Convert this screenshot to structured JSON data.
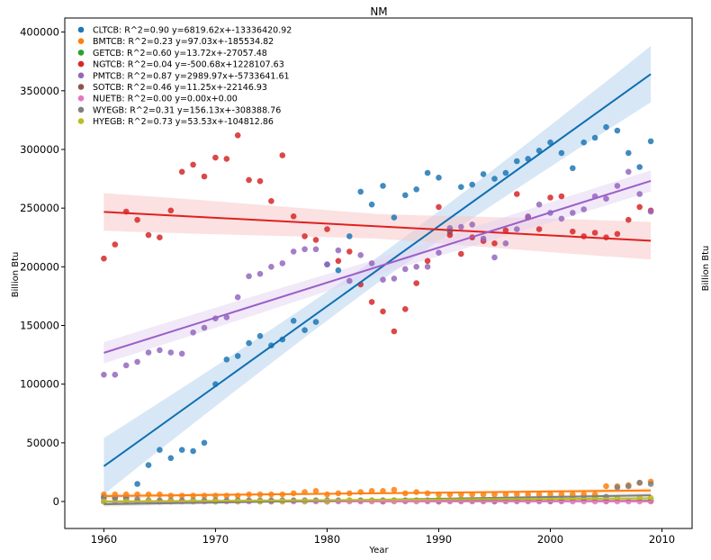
{
  "chart_data": {
    "type": "scatter",
    "title": "NM",
    "xlabel": "Year",
    "ylabel": "Billion Btu",
    "ylabel_right": "Billion Btu",
    "xlim": [
      1956.5,
      2012.7
    ],
    "ylim": [
      -23000,
      412000
    ],
    "x_ticks": [
      1960,
      1970,
      1980,
      1990,
      2000,
      2010
    ],
    "y_ticks": [
      0,
      50000,
      100000,
      150000,
      200000,
      250000,
      300000,
      350000,
      400000
    ],
    "grid": false,
    "legend_position": "top-left",
    "series": [
      {
        "name": "CLTCB",
        "legend": "CLTCB: R^2=0.90 y=6819.62x+-13336420.92",
        "color": "#1f77b4",
        "line_color": "#0e6fb0",
        "band_color": "#b6d4ef",
        "fit": [
          6819.62,
          -13336420.92
        ],
        "band": [
          20000,
          24000
        ],
        "x": [
          1960,
          1961,
          1962,
          1963,
          1964,
          1965,
          1966,
          1967,
          1968,
          1969,
          1970,
          1971,
          1972,
          1973,
          1974,
          1975,
          1976,
          1977,
          1978,
          1979,
          1980,
          1981,
          1982,
          1983,
          1984,
          1985,
          1986,
          1987,
          1988,
          1989,
          1990,
          1991,
          1992,
          1993,
          1994,
          1995,
          1996,
          1997,
          1998,
          1999,
          2000,
          2001,
          2002,
          2003,
          2004,
          2005,
          2006,
          2007,
          2008,
          2009
        ],
        "y": [
          4000,
          3000,
          3000,
          15000,
          31000,
          44000,
          37000,
          44000,
          43000,
          50000,
          100000,
          121000,
          124000,
          135000,
          141000,
          133000,
          138000,
          154000,
          146000,
          153000,
          202000,
          197000,
          226000,
          264000,
          253000,
          269000,
          242000,
          261000,
          266000,
          280000,
          276000,
          230000,
          268000,
          270000,
          279000,
          275000,
          280000,
          290000,
          292000,
          299000,
          306000,
          297000,
          284000,
          306000,
          310000,
          319000,
          316000,
          297000,
          285000,
          307000
        ]
      },
      {
        "name": "BMTCB",
        "legend": "BMTCB: R^2=0.23 y=97.03x+-185534.82",
        "color": "#ff7f0e",
        "line_color": "#ff7f0e",
        "band_color": "#ffd9b5",
        "fit": [
          97.03,
          -185534.82
        ],
        "band": [
          1500,
          2000
        ],
        "x": [
          1960,
          1961,
          1962,
          1963,
          1964,
          1965,
          1966,
          1967,
          1968,
          1969,
          1970,
          1971,
          1972,
          1973,
          1974,
          1975,
          1976,
          1977,
          1978,
          1979,
          1980,
          1981,
          1982,
          1983,
          1984,
          1985,
          1986,
          1987,
          1988,
          1989,
          1990,
          1991,
          1992,
          1993,
          1994,
          1995,
          1996,
          1997,
          1998,
          1999,
          2000,
          2001,
          2002,
          2003,
          2004,
          2005,
          2006,
          2007,
          2008,
          2009
        ],
        "y": [
          6000,
          6000,
          6000,
          6000,
          6000,
          6000,
          5000,
          5000,
          5000,
          5000,
          5000,
          5000,
          5000,
          6000,
          6000,
          6000,
          6000,
          7000,
          8000,
          9000,
          6000,
          7000,
          7000,
          8000,
          9000,
          9000,
          10000,
          7000,
          8000,
          7000,
          6000,
          6000,
          6000,
          6000,
          6000,
          6000,
          6000,
          6000,
          6000,
          6000,
          6000,
          6000,
          6000,
          6000,
          6000,
          13000,
          13000,
          14000,
          16000,
          17000
        ]
      },
      {
        "name": "GETCB",
        "legend": "GETCB: R^2=0.60 y=13.72x+-27057.48",
        "color": "#2ca02c",
        "line_color": "#2ca02c",
        "band_color": "#bfe3bf",
        "fit": [
          13.72,
          -27057.48
        ],
        "band": [
          300,
          400
        ],
        "x": [
          1960,
          1965,
          1970,
          1975,
          1980,
          1985,
          1990,
          1995,
          2000,
          2005,
          2009
        ],
        "y": [
          0,
          0,
          0,
          0,
          0,
          0,
          0,
          100,
          300,
          500,
          700
        ]
      },
      {
        "name": "NGTCB",
        "legend": "NGTCB: R^2=0.04 y=-500.68x+1228107.63",
        "color": "#d62728",
        "line_color": "#e02020",
        "band_color": "#f7c9c9",
        "fit": [
          -500.68,
          1228107.63
        ],
        "band": [
          19000,
          16000
        ],
        "x": [
          1960,
          1961,
          1962,
          1963,
          1964,
          1965,
          1966,
          1967,
          1968,
          1969,
          1970,
          1971,
          1972,
          1973,
          1974,
          1975,
          1976,
          1977,
          1978,
          1979,
          1980,
          1981,
          1982,
          1983,
          1984,
          1985,
          1986,
          1987,
          1988,
          1989,
          1990,
          1991,
          1992,
          1993,
          1994,
          1995,
          1996,
          1997,
          1998,
          1999,
          2000,
          2001,
          2002,
          2003,
          2004,
          2005,
          2006,
          2007,
          2008,
          2009
        ],
        "y": [
          207000,
          219000,
          247000,
          240000,
          227000,
          225000,
          248000,
          281000,
          287000,
          277000,
          293000,
          292000,
          312000,
          274000,
          273000,
          256000,
          295000,
          243000,
          226000,
          223000,
          232000,
          205000,
          213000,
          185000,
          170000,
          162000,
          145000,
          164000,
          186000,
          205000,
          251000,
          227000,
          211000,
          225000,
          222000,
          220000,
          231000,
          262000,
          242000,
          232000,
          259000,
          260000,
          230000,
          226000,
          229000,
          225000,
          228000,
          240000,
          251000,
          248000
        ]
      },
      {
        "name": "PMTCB",
        "legend": "PMTCB: R^2=0.87 y=2989.97x+-5733641.61",
        "color": "#9467bd",
        "line_color": "#9a5fc8",
        "band_color": "#e6d5f2",
        "fit": [
          2989.97,
          -5733641.61
        ],
        "band": [
          12000,
          9000
        ],
        "x": [
          1960,
          1961,
          1962,
          1963,
          1964,
          1965,
          1966,
          1967,
          1968,
          1969,
          1970,
          1971,
          1972,
          1973,
          1974,
          1975,
          1976,
          1977,
          1978,
          1979,
          1980,
          1981,
          1982,
          1983,
          1984,
          1985,
          1986,
          1987,
          1988,
          1989,
          1990,
          1991,
          1992,
          1993,
          1994,
          1995,
          1996,
          1997,
          1998,
          1999,
          2000,
          2001,
          2002,
          2003,
          2004,
          2005,
          2006,
          2007,
          2008,
          2009
        ],
        "y": [
          108000,
          108000,
          116000,
          119000,
          127000,
          129000,
          127000,
          126000,
          144000,
          148000,
          156000,
          157000,
          174000,
          192000,
          194000,
          200000,
          203000,
          213000,
          215000,
          215000,
          202000,
          214000,
          188000,
          210000,
          203000,
          189000,
          190000,
          198000,
          200000,
          200000,
          212000,
          233000,
          234000,
          236000,
          224000,
          208000,
          220000,
          232000,
          243000,
          253000,
          246000,
          241000,
          246000,
          249000,
          260000,
          258000,
          269000,
          281000,
          262000,
          247000
        ]
      },
      {
        "name": "SOTCB",
        "legend": "SOTCB: R^2=0.46 y=11.25x+-22146.93",
        "color": "#8c564b",
        "line_color": "#8c564b",
        "band_color": "#dcc6c2",
        "fit": [
          11.25,
          -22146.93
        ],
        "band": [
          300,
          400
        ],
        "x": [
          1980,
          1985,
          1990,
          1995,
          2000,
          2005,
          2009
        ],
        "y": [
          0,
          0,
          0,
          100,
          200,
          400,
          600
        ]
      },
      {
        "name": "NUETB",
        "legend": "NUETB: R^2=0.00 y=0.00x+0.00",
        "color": "#e377c2",
        "line_color": "#e377c2",
        "band_color": "#f6d0ec",
        "fit": [
          0,
          0
        ],
        "band": [
          0,
          0
        ],
        "x": [
          1960,
          1961,
          1962,
          1963,
          1964,
          1965,
          1966,
          1967,
          1968,
          1969,
          1970,
          1971,
          1972,
          1973,
          1974,
          1975,
          1976,
          1977,
          1978,
          1979,
          1980,
          1981,
          1982,
          1983,
          1984,
          1985,
          1986,
          1987,
          1988,
          1989,
          1990,
          1991,
          1992,
          1993,
          1994,
          1995,
          1996,
          1997,
          1998,
          1999,
          2000,
          2001,
          2002,
          2003,
          2004,
          2005,
          2006,
          2007,
          2008,
          2009
        ],
        "y": [
          0,
          0,
          0,
          0,
          0,
          0,
          0,
          0,
          0,
          0,
          0,
          0,
          0,
          0,
          0,
          0,
          0,
          0,
          0,
          0,
          0,
          0,
          0,
          0,
          0,
          0,
          0,
          0,
          0,
          0,
          0,
          0,
          0,
          0,
          0,
          0,
          0,
          0,
          0,
          0,
          0,
          0,
          0,
          0,
          0,
          0,
          0,
          0,
          0,
          0
        ]
      },
      {
        "name": "WYEGB",
        "legend": "WYEGB: R^2=0.31 y=156.13x+-308388.76",
        "color": "#7f7f7f",
        "line_color": "#7f7f7f",
        "band_color": "#d9d9d9",
        "fit": [
          156.13,
          -308388.76
        ],
        "band": [
          1500,
          2000
        ],
        "x": [
          1960,
          1961,
          1962,
          1963,
          1964,
          1965,
          1966,
          1967,
          1968,
          1969,
          1970,
          1971,
          1972,
          1973,
          1974,
          1975,
          1976,
          1977,
          1978,
          1979,
          1980,
          1981,
          1982,
          1983,
          1984,
          1985,
          1986,
          1987,
          1988,
          1989,
          1990,
          1991,
          1992,
          1993,
          1994,
          1995,
          1996,
          1997,
          1998,
          1999,
          2000,
          2001,
          2002,
          2003,
          2004,
          2005,
          2006,
          2007,
          2008,
          2009
        ],
        "y": [
          3000,
          3000,
          2000,
          2000,
          1000,
          1000,
          1000,
          1000,
          1000,
          1000,
          1000,
          1000,
          1000,
          1000,
          1000,
          1000,
          1000,
          1000,
          1000,
          1000,
          1000,
          1000,
          1000,
          1000,
          1000,
          1000,
          1000,
          1000,
          1000,
          1000,
          1000,
          1000,
          1000,
          1000,
          1000,
          1000,
          1000,
          1000,
          1000,
          1000,
          1000,
          1000,
          2000,
          2000,
          3000,
          4000,
          12000,
          13000,
          16000,
          15000
        ]
      },
      {
        "name": "HYEGB",
        "legend": "HYEGB: R^2=0.73 y=53.53x+-104812.86",
        "color": "#bcbd22",
        "line_color": "#bcbd22",
        "band_color": "#ecedb5",
        "fit": [
          53.53,
          -104812.86
        ],
        "band": [
          800,
          1000
        ],
        "x": [
          1960,
          1962,
          1964,
          1966,
          1968,
          1970,
          1972,
          1974,
          1976,
          1978,
          1980,
          1982,
          1984,
          1986,
          1988,
          1990,
          1992,
          1994,
          1996,
          1998,
          2000,
          2002,
          2004,
          2006,
          2008,
          2009
        ],
        "y": [
          0,
          0,
          0,
          0,
          0,
          0,
          0,
          0,
          0,
          0,
          0,
          1000,
          1000,
          1000,
          1000,
          2000,
          2000,
          2000,
          2000,
          2000,
          3000,
          3000,
          3000,
          3000,
          3000,
          3000
        ]
      }
    ]
  }
}
